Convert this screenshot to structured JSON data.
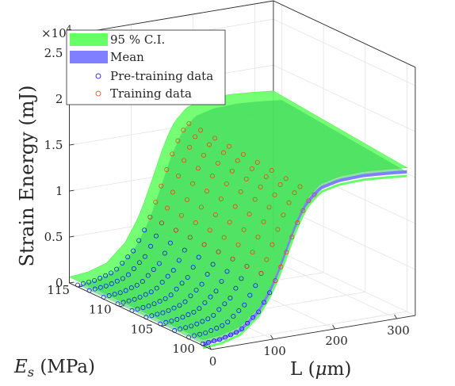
{
  "chart_data": {
    "type": "surface",
    "title": "",
    "zlabel": "Strain Energy (mJ)",
    "x_label_var": "E",
    "x_label_sub": "s",
    "x_label_unit": " (MPa)",
    "y_label": "L (",
    "y_label_greek": "μ",
    "y_label_unit": "m)",
    "z_exponent_base": "×10",
    "z_exponent_power": "4",
    "z_ticks": [
      {
        "value": 0,
        "label": "0"
      },
      {
        "value": 0.5,
        "label": "0.5"
      },
      {
        "value": 1,
        "label": "1"
      },
      {
        "value": 1.5,
        "label": "1.5"
      },
      {
        "value": 2,
        "label": "2"
      },
      {
        "value": 2.5,
        "label": "2.5"
      }
    ],
    "es_ticks": [
      {
        "value": 100,
        "label": "100"
      },
      {
        "value": 105,
        "label": "105"
      },
      {
        "value": 110,
        "label": "110"
      },
      {
        "value": 115,
        "label": "115"
      }
    ],
    "l_ticks": [
      {
        "value": 0,
        "label": "0"
      },
      {
        "value": 100,
        "label": "100"
      },
      {
        "value": 200,
        "label": "200"
      },
      {
        "value": 300,
        "label": "300"
      }
    ],
    "es_range": [
      99,
      116
    ],
    "l_range": [
      0,
      330
    ],
    "z_range": [
      0,
      2.5
    ],
    "legend_position": "top-left",
    "grid": true,
    "series": [
      {
        "name": "95 % C.I.",
        "kind": "confidence-band",
        "color": "#66ff66"
      },
      {
        "name": "Mean",
        "kind": "surface",
        "color": "#7f7fff"
      },
      {
        "name": "Pre-training data",
        "kind": "markers",
        "color": "#0000ff"
      },
      {
        "name": "Training data",
        "kind": "markers",
        "color": "#ff3300"
      }
    ],
    "pretraining_data": {
      "es": [
        100,
        101.7,
        103.4,
        105.1,
        106.8,
        108.5,
        110.2,
        111.9,
        113.6,
        115
      ],
      "l": [
        0,
        9,
        18,
        27,
        36,
        45,
        54,
        63,
        72,
        81,
        90,
        99,
        108,
        117
      ]
    },
    "training_data": {
      "es": [
        100,
        101.7,
        103.4,
        105.1,
        106.8,
        108.5,
        110.2,
        111.9,
        113.6,
        115
      ],
      "l": [
        117,
        126,
        135,
        144,
        153,
        162,
        171,
        180
      ]
    },
    "mean_surface": {
      "l": [
        0,
        30,
        60,
        90,
        110,
        120,
        130,
        140,
        150,
        160,
        170,
        190,
        220,
        260,
        300,
        330
      ],
      "z": [
        0.02,
        0.04,
        0.1,
        0.28,
        0.5,
        0.65,
        0.82,
        1.0,
        1.18,
        1.33,
        1.45,
        1.58,
        1.63,
        1.64,
        1.62,
        1.6
      ],
      "es_factor": [
        0.95,
        1.04
      ]
    },
    "ci_halfwidth": 0.045
  }
}
